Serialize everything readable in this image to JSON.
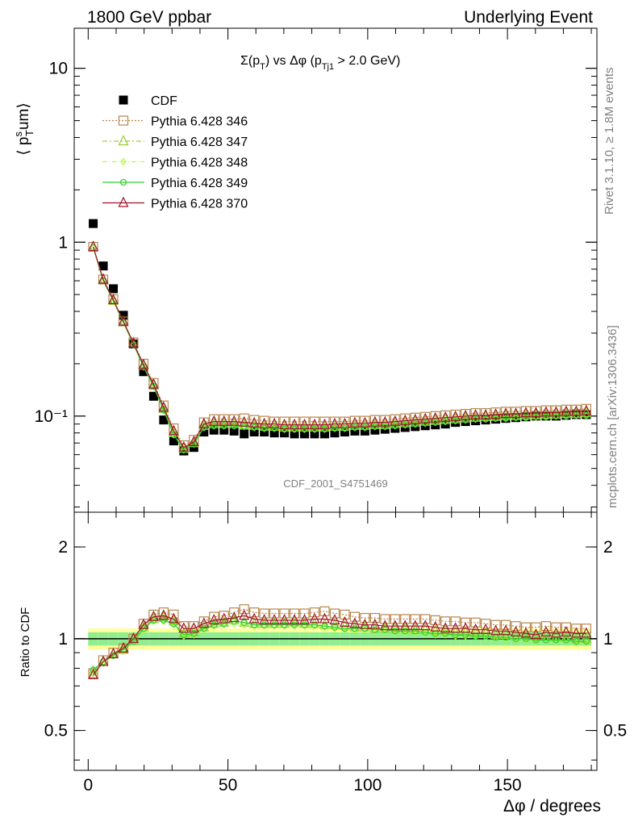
{
  "header": {
    "left": "1800 GeV ppbar",
    "right": "Underlying Event"
  },
  "side": {
    "rivet": "Rivet 3.1.10, ≥ 1.8M events",
    "mcplots": "mcplots.cern.ch [arXiv:1306.3436]"
  },
  "analysis_id": "CDF_2001_S4751469",
  "colors": {
    "cdf": "#000000",
    "p346": "#b8864b",
    "p347": "#9acd32",
    "p348": "#adff2f",
    "p349": "#32cd32",
    "p370": "#a0142a",
    "band_outer": "#ffff99",
    "band_inner": "#90ee90"
  },
  "chart_data": [
    {
      "type": "scatter",
      "title": {
        "pre": "Σ(p",
        "sub1": "T",
        "mid": ") vs Δφ (p",
        "sub2": "Tj1",
        "post": " > 2.0 GeV)"
      },
      "ylabel": {
        "open": "⟨ p",
        "sup": "s",
        "sub": "T",
        "rest": "um⟩"
      },
      "yscale": "log",
      "ylim": [
        0.028,
        17
      ],
      "xlim": [
        -5,
        182
      ],
      "yticks": [
        {
          "v": 0.1,
          "label": "10⁻¹"
        },
        {
          "v": 1,
          "label": "1"
        },
        {
          "v": 10,
          "label": "10"
        }
      ],
      "legend": [
        "CDF",
        "Pythia 6.428 346",
        "Pythia 6.428 347",
        "Pythia 6.428 348",
        "Pythia 6.428 349",
        "Pythia 6.428 370"
      ],
      "x": [
        1.8,
        5.4,
        9,
        12.6,
        16.2,
        19.8,
        23.4,
        27,
        30.6,
        34.2,
        37.8,
        41.4,
        45,
        48.6,
        52.2,
        55.8,
        59.4,
        63,
        66.6,
        70.2,
        73.8,
        77.4,
        81,
        84.6,
        88.2,
        91.8,
        95.4,
        99,
        102.6,
        106.2,
        109.8,
        113.4,
        117,
        120.6,
        124.2,
        127.8,
        131.4,
        135,
        138.6,
        142.2,
        145.8,
        149.4,
        153,
        156.6,
        160.2,
        163.8,
        167.4,
        171,
        174.6,
        178.2
      ],
      "series": [
        {
          "name": "CDF",
          "values": [
            1.28,
            0.73,
            0.54,
            0.38,
            0.26,
            0.18,
            0.13,
            0.095,
            0.072,
            0.063,
            0.066,
            0.081,
            0.083,
            0.083,
            0.082,
            0.079,
            0.081,
            0.081,
            0.08,
            0.08,
            0.079,
            0.079,
            0.079,
            0.079,
            0.08,
            0.081,
            0.082,
            0.082,
            0.083,
            0.084,
            0.085,
            0.086,
            0.087,
            0.088,
            0.089,
            0.09,
            0.092,
            0.093,
            0.094,
            0.095,
            0.096,
            0.097,
            0.098,
            0.099,
            0.1,
            0.1,
            0.1,
            0.101,
            0.102,
            0.102
          ]
        },
        {
          "name": "Pythia 6.428 346",
          "values": [
            0.94,
            0.61,
            0.47,
            0.35,
            0.265,
            0.2,
            0.155,
            0.115,
            0.085,
            0.068,
            0.073,
            0.092,
            0.096,
            0.096,
            0.096,
            0.097,
            0.095,
            0.094,
            0.093,
            0.093,
            0.093,
            0.093,
            0.093,
            0.093,
            0.093,
            0.093,
            0.094,
            0.094,
            0.095,
            0.095,
            0.096,
            0.097,
            0.098,
            0.099,
            0.1,
            0.101,
            0.102,
            0.103,
            0.104,
            0.104,
            0.105,
            0.106,
            0.106,
            0.107,
            0.107,
            0.108,
            0.108,
            0.109,
            0.109,
            0.11
          ]
        },
        {
          "name": "Pythia 6.428 347",
          "values": [
            0.94,
            0.61,
            0.46,
            0.35,
            0.262,
            0.195,
            0.15,
            0.11,
            0.08,
            0.065,
            0.07,
            0.088,
            0.09,
            0.09,
            0.09,
            0.089,
            0.088,
            0.087,
            0.087,
            0.086,
            0.086,
            0.086,
            0.086,
            0.086,
            0.087,
            0.087,
            0.088,
            0.088,
            0.089,
            0.089,
            0.09,
            0.091,
            0.092,
            0.093,
            0.094,
            0.095,
            0.096,
            0.097,
            0.098,
            0.099,
            0.099,
            0.1,
            0.1,
            0.101,
            0.101,
            0.102,
            0.102,
            0.103,
            0.103,
            0.104
          ]
        },
        {
          "name": "Pythia 6.428 348",
          "values": [
            0.93,
            0.6,
            0.46,
            0.345,
            0.258,
            0.192,
            0.148,
            0.108,
            0.078,
            0.064,
            0.069,
            0.086,
            0.088,
            0.088,
            0.088,
            0.087,
            0.086,
            0.085,
            0.085,
            0.084,
            0.084,
            0.084,
            0.084,
            0.084,
            0.085,
            0.085,
            0.086,
            0.086,
            0.087,
            0.087,
            0.088,
            0.089,
            0.09,
            0.091,
            0.092,
            0.093,
            0.094,
            0.095,
            0.096,
            0.096,
            0.097,
            0.097,
            0.098,
            0.098,
            0.099,
            0.099,
            0.1,
            0.1,
            0.101,
            0.101
          ]
        },
        {
          "name": "Pythia 6.428 349",
          "values": [
            0.93,
            0.6,
            0.46,
            0.345,
            0.258,
            0.192,
            0.148,
            0.108,
            0.078,
            0.064,
            0.069,
            0.086,
            0.088,
            0.088,
            0.088,
            0.087,
            0.086,
            0.085,
            0.085,
            0.084,
            0.084,
            0.084,
            0.084,
            0.084,
            0.085,
            0.085,
            0.086,
            0.086,
            0.087,
            0.087,
            0.088,
            0.089,
            0.09,
            0.091,
            0.092,
            0.093,
            0.094,
            0.095,
            0.096,
            0.096,
            0.097,
            0.097,
            0.098,
            0.098,
            0.099,
            0.099,
            0.1,
            0.1,
            0.101,
            0.101
          ]
        },
        {
          "name": "Pythia 6.428 370",
          "values": [
            0.94,
            0.61,
            0.465,
            0.35,
            0.262,
            0.197,
            0.152,
            0.112,
            0.082,
            0.066,
            0.071,
            0.09,
            0.093,
            0.093,
            0.093,
            0.092,
            0.091,
            0.09,
            0.09,
            0.089,
            0.089,
            0.089,
            0.089,
            0.089,
            0.09,
            0.09,
            0.091,
            0.091,
            0.092,
            0.092,
            0.093,
            0.094,
            0.095,
            0.096,
            0.097,
            0.098,
            0.099,
            0.1,
            0.101,
            0.101,
            0.102,
            0.103,
            0.103,
            0.104,
            0.104,
            0.105,
            0.105,
            0.106,
            0.106,
            0.107
          ]
        }
      ]
    },
    {
      "type": "line",
      "ylabel": "Ratio to CDF",
      "xlabel": "Δφ / degrees",
      "yscale": "log",
      "ylim": [
        0.37,
        2.6
      ],
      "xlim": [
        -5,
        182
      ],
      "yticks": [
        {
          "v": 0.5,
          "label": "0.5"
        },
        {
          "v": 1,
          "label": "1"
        },
        {
          "v": 2,
          "label": "2"
        }
      ],
      "xticks": [
        0,
        50,
        100,
        150
      ],
      "band": {
        "outer": [
          0.92,
          1.08
        ],
        "inner": [
          0.95,
          1.05
        ]
      },
      "x": [
        1.8,
        5.4,
        9,
        12.6,
        16.2,
        19.8,
        23.4,
        27,
        30.6,
        34.2,
        37.8,
        41.4,
        45,
        48.6,
        52.2,
        55.8,
        59.4,
        63,
        66.6,
        70.2,
        73.8,
        77.4,
        81,
        84.6,
        88.2,
        91.8,
        95.4,
        99,
        102.6,
        106.2,
        109.8,
        113.4,
        117,
        120.6,
        124.2,
        127.8,
        131.4,
        135,
        138.6,
        142.2,
        145.8,
        149.4,
        153,
        156.6,
        160.2,
        163.8,
        167.4,
        171,
        174.6,
        178.2
      ],
      "series": [
        {
          "name": "Pythia 6.428 346",
          "values": [
            0.77,
            0.85,
            0.9,
            0.93,
            1.0,
            1.12,
            1.2,
            1.22,
            1.2,
            1.1,
            1.1,
            1.14,
            1.18,
            1.19,
            1.22,
            1.25,
            1.22,
            1.21,
            1.21,
            1.21,
            1.21,
            1.21,
            1.22,
            1.23,
            1.21,
            1.2,
            1.18,
            1.17,
            1.17,
            1.16,
            1.16,
            1.16,
            1.16,
            1.16,
            1.15,
            1.14,
            1.14,
            1.13,
            1.13,
            1.12,
            1.11,
            1.11,
            1.1,
            1.09,
            1.09,
            1.1,
            1.09,
            1.09,
            1.08,
            1.08
          ]
        },
        {
          "name": "Pythia 6.428 347",
          "values": [
            0.78,
            0.84,
            0.89,
            0.92,
            0.99,
            1.09,
            1.16,
            1.17,
            1.14,
            1.04,
            1.05,
            1.09,
            1.12,
            1.13,
            1.15,
            1.13,
            1.12,
            1.12,
            1.12,
            1.12,
            1.13,
            1.12,
            1.12,
            1.11,
            1.11,
            1.1,
            1.09,
            1.09,
            1.08,
            1.08,
            1.08,
            1.08,
            1.07,
            1.07,
            1.06,
            1.06,
            1.05,
            1.05,
            1.04,
            1.04,
            1.03,
            1.03,
            1.02,
            1.02,
            1.01,
            1.02,
            1.01,
            1.01,
            1.0,
            1.0
          ]
        },
        {
          "name": "Pythia 6.428 348",
          "values": [
            0.77,
            0.83,
            0.88,
            0.91,
            0.98,
            1.07,
            1.14,
            1.14,
            1.11,
            1.02,
            1.03,
            1.07,
            1.1,
            1.11,
            1.12,
            1.11,
            1.1,
            1.1,
            1.1,
            1.1,
            1.1,
            1.1,
            1.1,
            1.09,
            1.08,
            1.07,
            1.07,
            1.07,
            1.06,
            1.06,
            1.05,
            1.05,
            1.05,
            1.04,
            1.03,
            1.03,
            1.02,
            1.02,
            1.02,
            1.01,
            1.01,
            1.0,
            1.0,
            0.99,
            0.98,
            0.99,
            0.98,
            0.99,
            0.97,
            0.97
          ]
        },
        {
          "name": "Pythia 6.428 349",
          "values": [
            0.79,
            0.84,
            0.88,
            0.92,
            0.98,
            1.08,
            1.15,
            1.15,
            1.12,
            1.03,
            1.04,
            1.08,
            1.11,
            1.12,
            1.14,
            1.13,
            1.11,
            1.11,
            1.11,
            1.11,
            1.11,
            1.11,
            1.11,
            1.1,
            1.09,
            1.08,
            1.08,
            1.08,
            1.07,
            1.07,
            1.06,
            1.06,
            1.06,
            1.05,
            1.04,
            1.04,
            1.03,
            1.03,
            1.02,
            1.02,
            1.01,
            1.01,
            1.0,
            1.0,
            0.99,
            0.99,
            0.99,
            0.99,
            0.98,
            0.98
          ]
        },
        {
          "name": "Pythia 6.428 370",
          "values": [
            0.76,
            0.84,
            0.89,
            0.93,
            1.0,
            1.11,
            1.18,
            1.19,
            1.16,
            1.08,
            1.08,
            1.12,
            1.15,
            1.16,
            1.17,
            1.19,
            1.16,
            1.15,
            1.15,
            1.15,
            1.15,
            1.15,
            1.16,
            1.16,
            1.15,
            1.13,
            1.12,
            1.11,
            1.11,
            1.1,
            1.1,
            1.1,
            1.1,
            1.1,
            1.09,
            1.08,
            1.08,
            1.08,
            1.07,
            1.07,
            1.06,
            1.06,
            1.05,
            1.04,
            1.03,
            1.05,
            1.04,
            1.05,
            1.04,
            1.04
          ]
        }
      ]
    }
  ]
}
